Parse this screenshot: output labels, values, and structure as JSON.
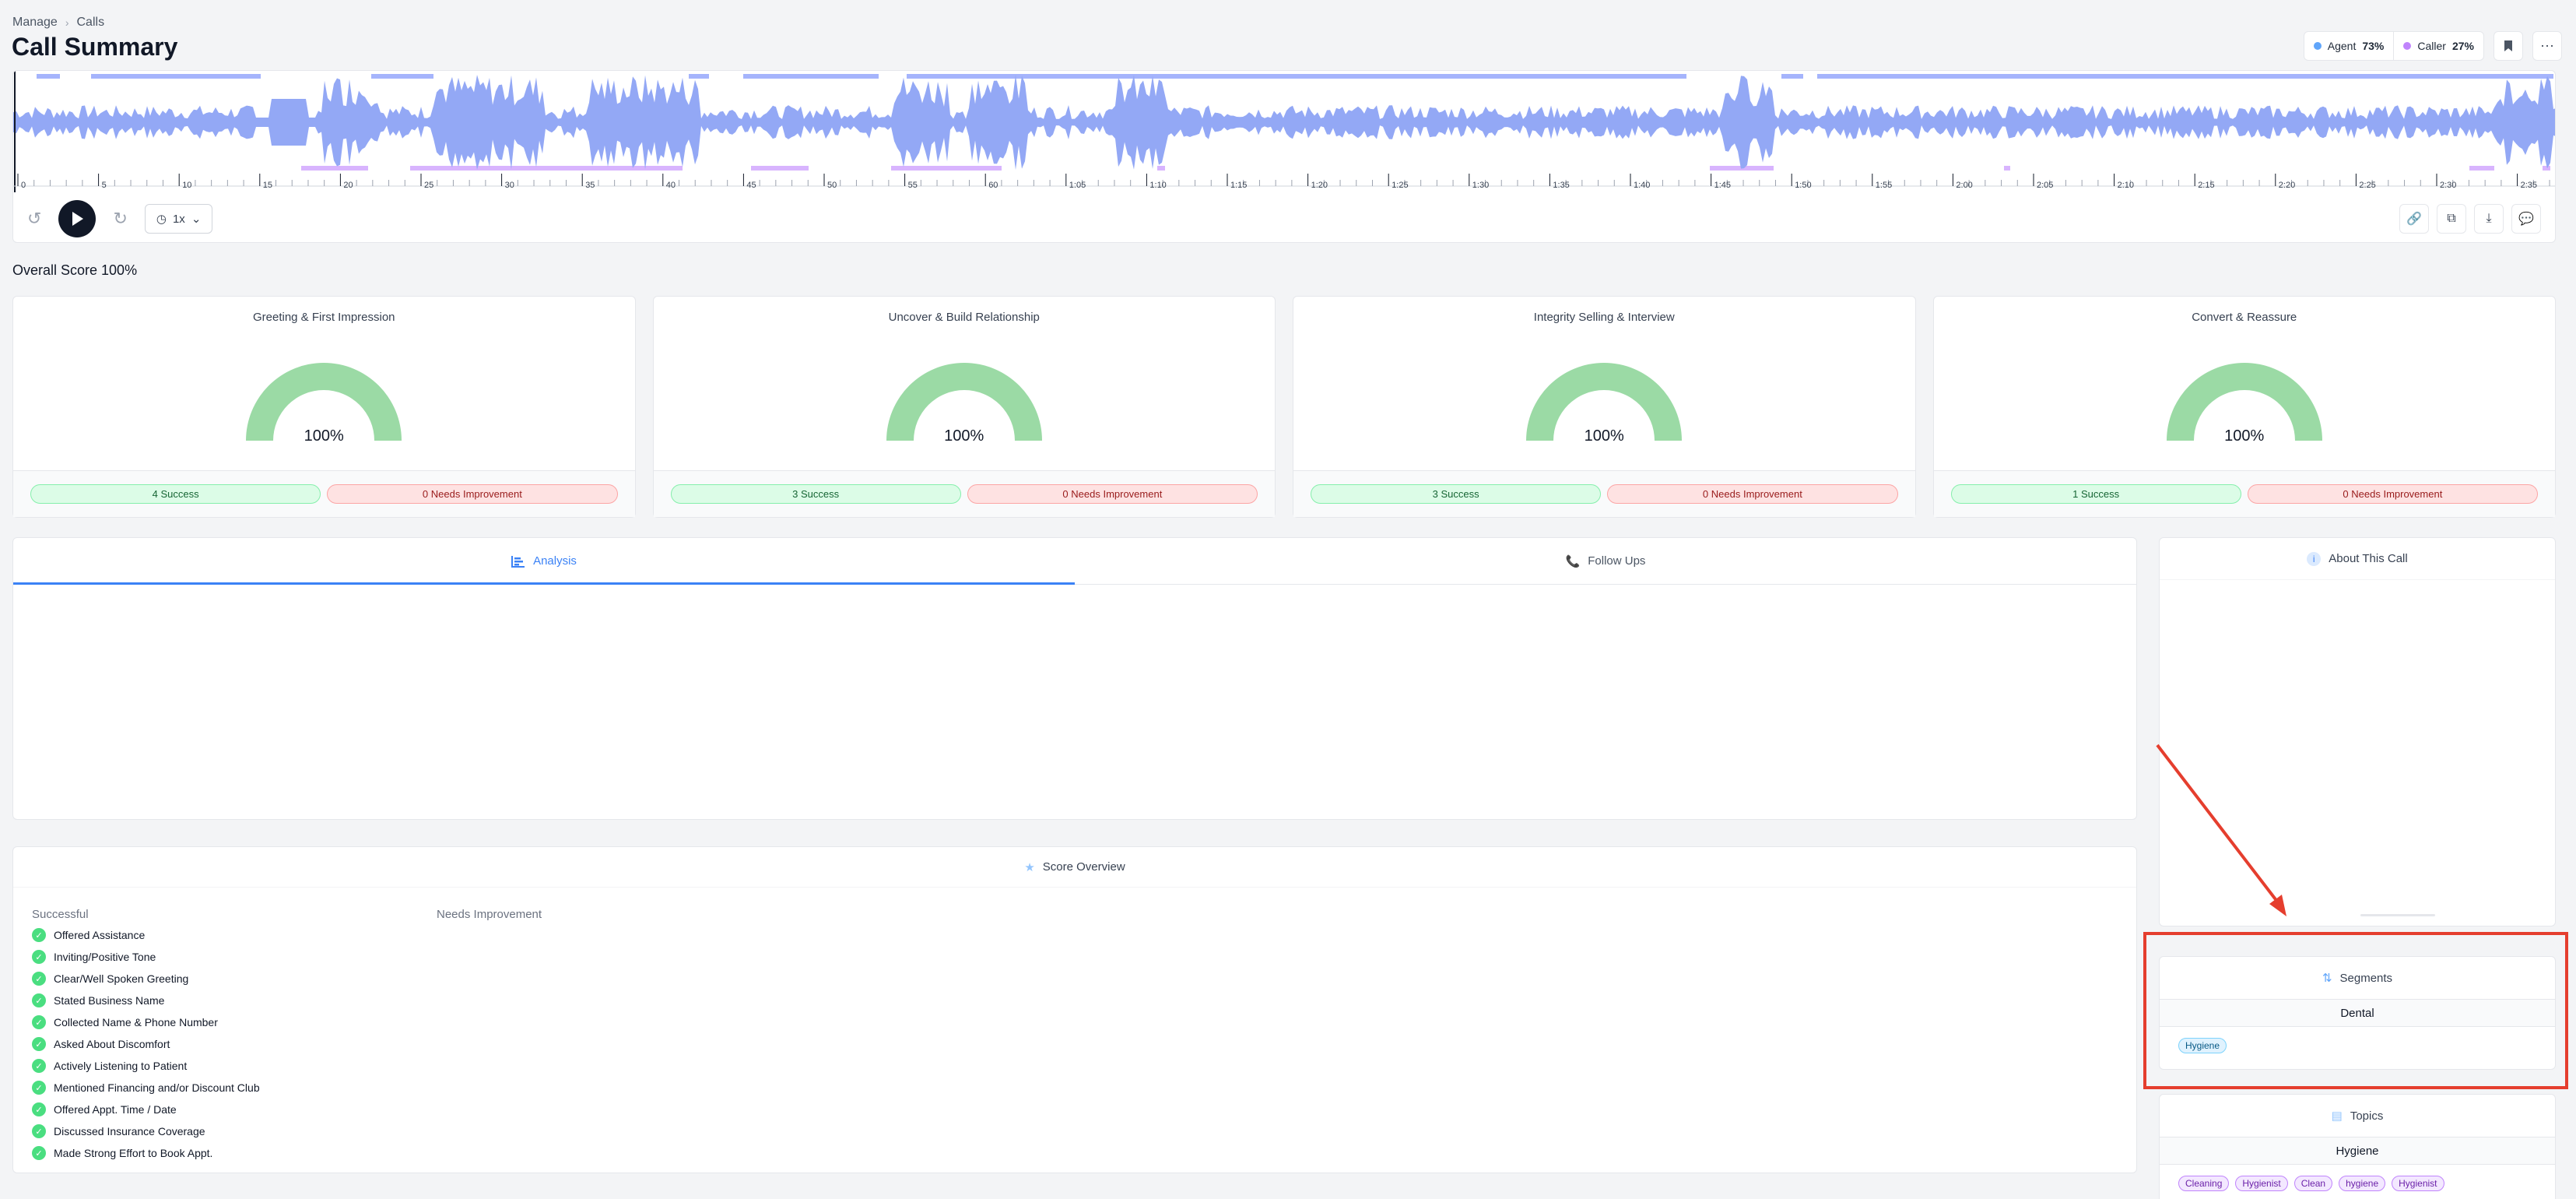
{
  "breadcrumb": {
    "items": [
      "Manage",
      "Calls"
    ]
  },
  "page": {
    "title": "Call Summary"
  },
  "talk_ratio": {
    "agent_label": "Agent",
    "agent_value": "73%",
    "caller_label": "Caller",
    "caller_value": "27%",
    "agent_color": "#60a5fa",
    "caller_color": "#c084fc"
  },
  "player": {
    "speed": "1x",
    "timeline_labels": [
      "0",
      "5",
      "10",
      "15",
      "20",
      "25",
      "30",
      "35",
      "40",
      "45",
      "50",
      "55",
      "60",
      "1:05",
      "1:10",
      "1:15",
      "1:20",
      "1:25",
      "1:30",
      "1:35",
      "1:40",
      "1:45",
      "1:50",
      "1:55",
      "2:00",
      "2:05",
      "2:10",
      "2:15",
      "2:20",
      "2:25",
      "2:30",
      "2:35"
    ],
    "wave_color": "#93a8f5",
    "agent_bar_color": "#a5b4fc",
    "caller_bar_color": "#d8b4fe"
  },
  "overall_score": "Overall Score 100%",
  "score_cards": [
    {
      "title": "Greeting & First Impression",
      "value": "100%",
      "success": "4 Success",
      "improve": "0 Needs Improvement"
    },
    {
      "title": "Uncover & Build Relationship",
      "value": "100%",
      "success": "3 Success",
      "improve": "0 Needs Improvement"
    },
    {
      "title": "Integrity Selling & Interview",
      "value": "100%",
      "success": "3 Success",
      "improve": "0 Needs Improvement"
    },
    {
      "title": "Convert & Reassure",
      "value": "100%",
      "success": "1 Success",
      "improve": "0 Needs Improvement"
    }
  ],
  "tabs": {
    "analysis": "Analysis",
    "follow_ups": "Follow Ups"
  },
  "score_overview": {
    "title": "Score Overview",
    "successful_label": "Successful",
    "improvement_label": "Needs Improvement",
    "successful_items": [
      "Offered Assistance",
      "Inviting/Positive Tone",
      "Clear/Well Spoken Greeting",
      "Stated Business Name",
      "Collected Name & Phone Number",
      "Asked About Discomfort",
      "Actively Listening to Patient",
      "Mentioned Financing and/or Discount Club",
      "Offered Appt. Time / Date",
      "Discussed Insurance Coverage",
      "Made Strong Effort to Book Appt."
    ]
  },
  "about": {
    "title": "About This Call"
  },
  "segments": {
    "title": "Segments",
    "group": "Dental",
    "tags": [
      "Hygiene"
    ]
  },
  "topics": {
    "title": "Topics",
    "group": "Hygiene",
    "tags": [
      "Cleaning",
      "Hygienist",
      "Clean",
      "hygiene",
      "Hygienist"
    ]
  },
  "colors": {
    "accent": "#3b82f6",
    "gauge": "#9bdaa5",
    "annotation": "#e53e2e"
  }
}
